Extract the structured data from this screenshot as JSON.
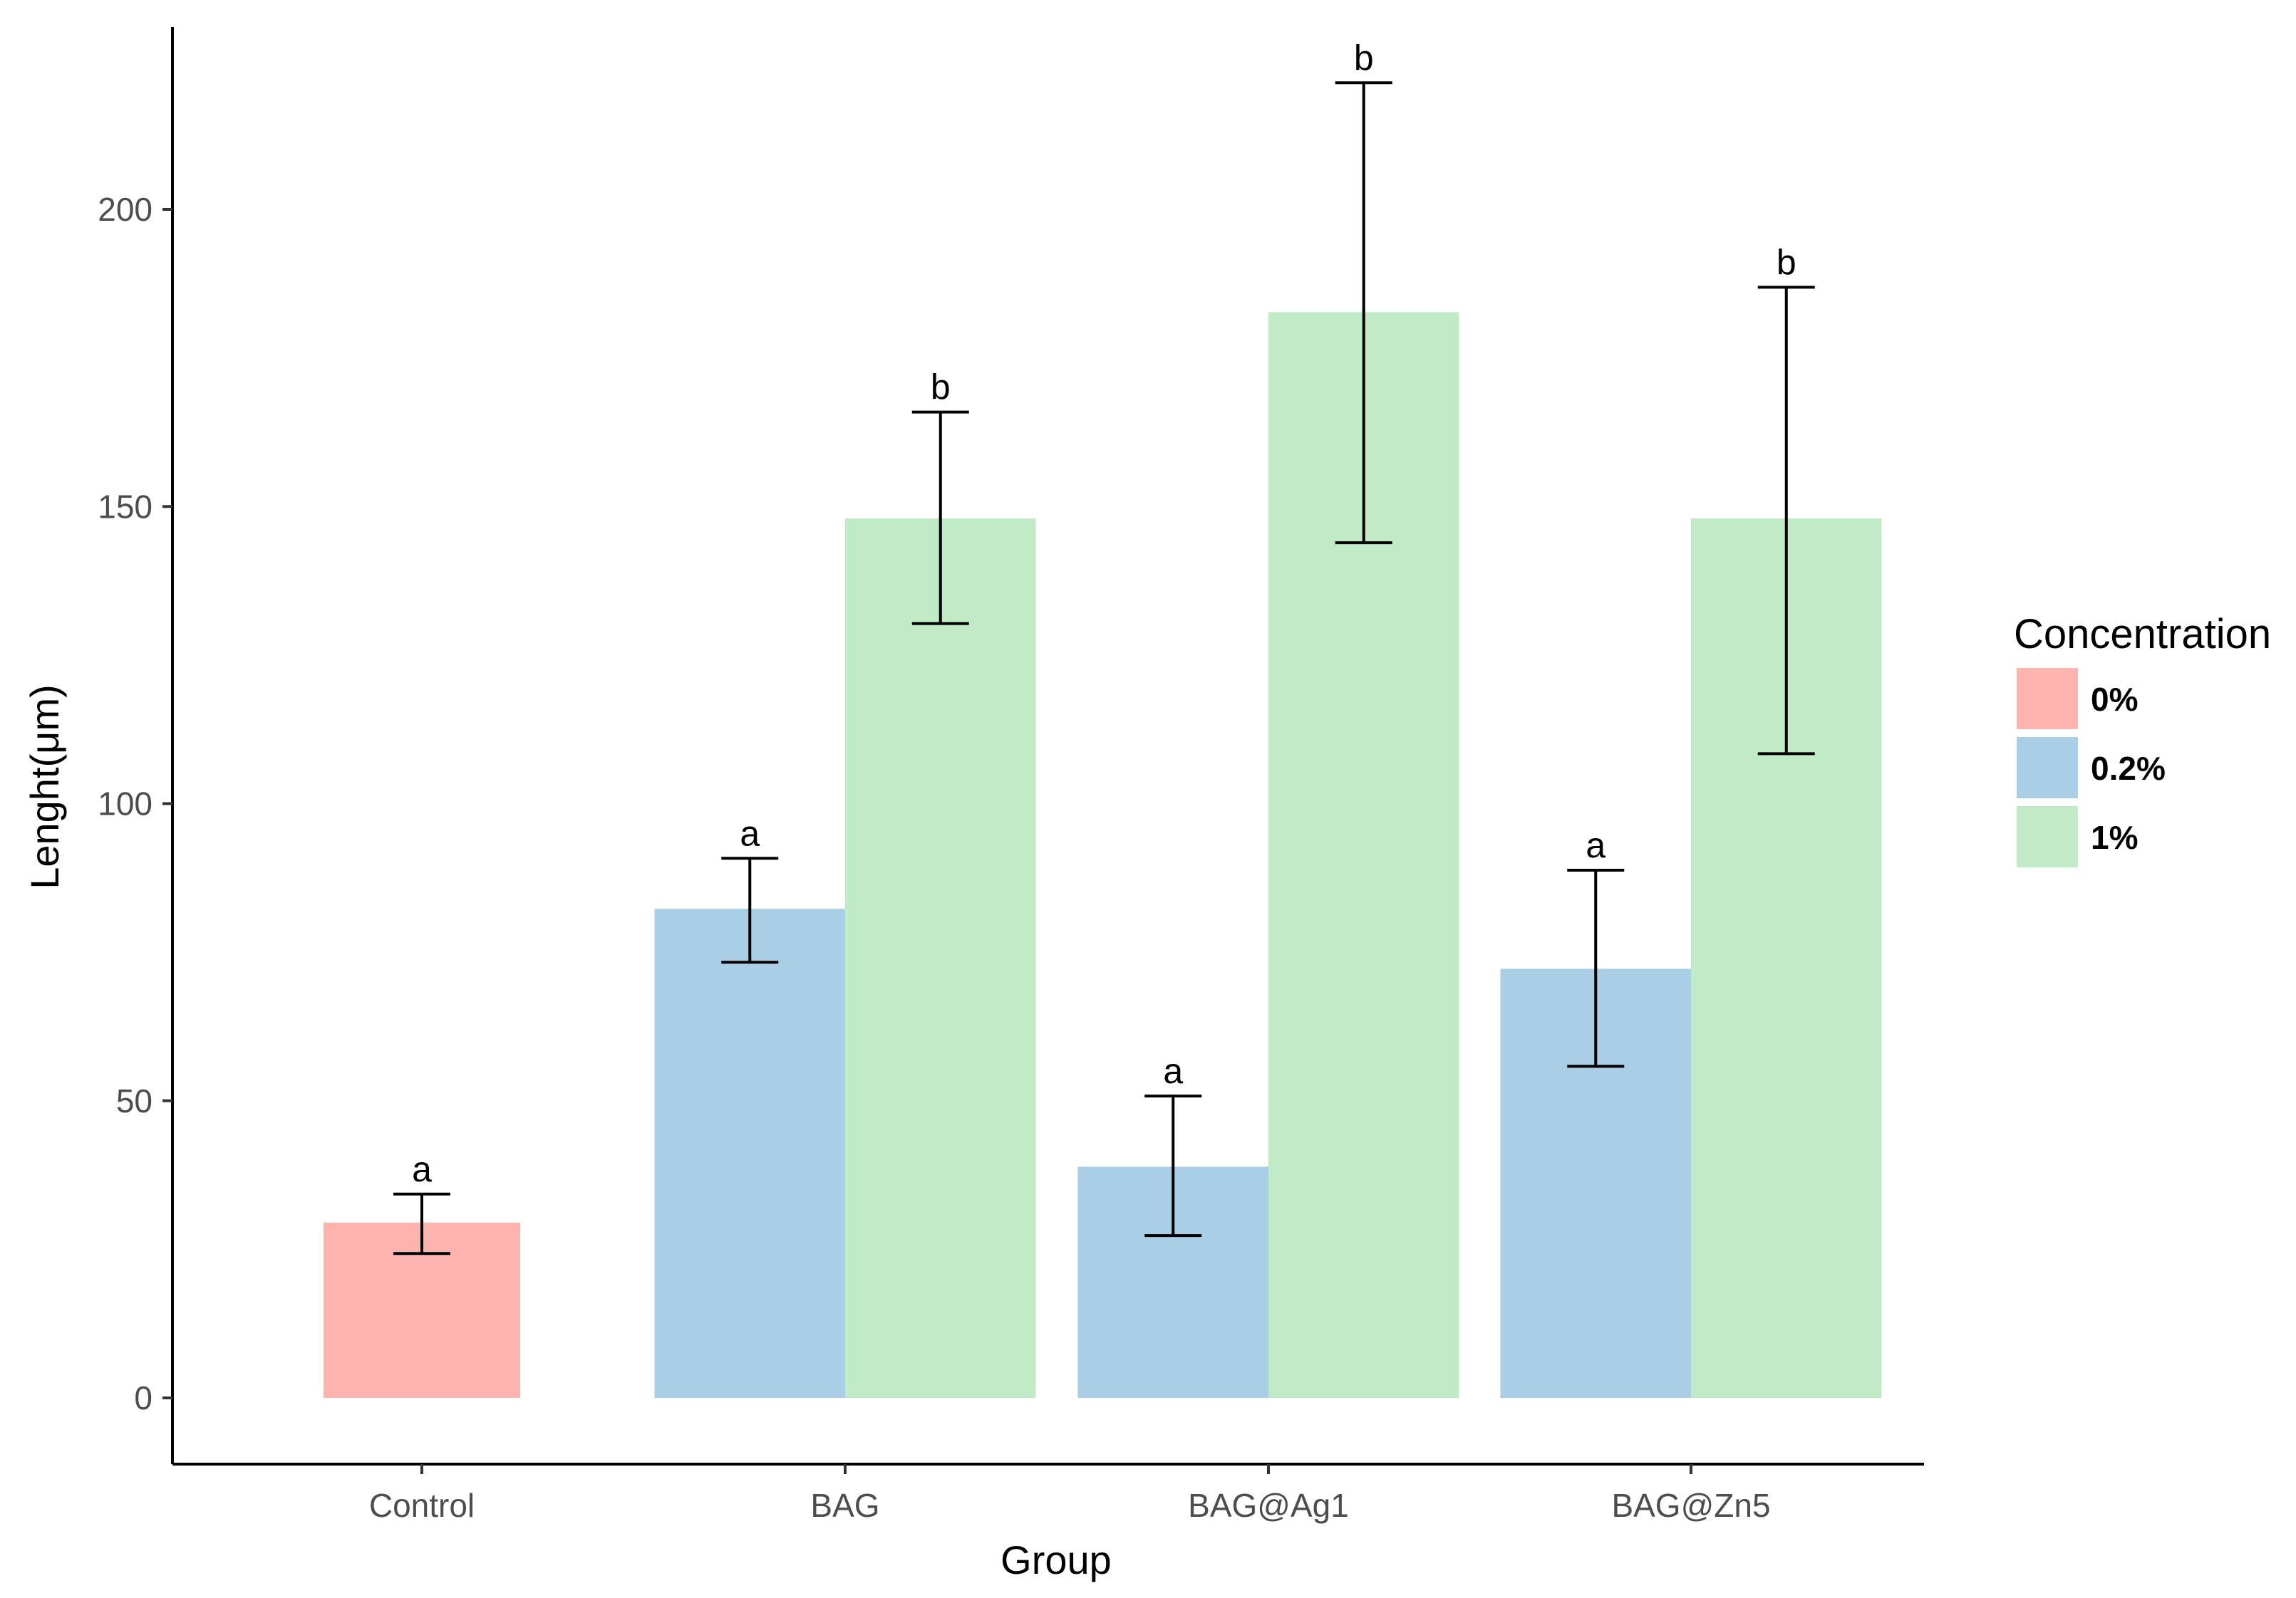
{
  "chart_data": {
    "type": "bar",
    "title": "",
    "xlabel": "Group",
    "ylabel": "Lenght(μm)",
    "ylim": [
      -11,
      230
    ],
    "yticks": [
      0,
      50,
      100,
      150,
      200
    ],
    "categories": [
      "Control",
      "BAG",
      "BAG@Ag1",
      "BAG@Zn5"
    ],
    "legend": {
      "title": "Concentration",
      "position": "right",
      "entries": [
        {
          "name": "0%",
          "color": "#F8766D"
        },
        {
          "name": "0.2%",
          "color": "#619CFF"
        },
        {
          "name": "1%",
          "color": "#00BA38"
        }
      ]
    },
    "colors": {
      "0%": "#fdb3ae",
      "0.2%": "#a9cee6",
      "1%": "#c1ebc6"
    },
    "bars": [
      {
        "category": "Control",
        "series": "0%",
        "value": 29.5,
        "error_low": 24.3,
        "error_high": 34.3,
        "label": "a"
      },
      {
        "category": "BAG",
        "series": "0.2%",
        "value": 82.3,
        "error_low": 73.3,
        "error_high": 90.8,
        "label": "a"
      },
      {
        "category": "BAG",
        "series": "1%",
        "value": 148.0,
        "error_low": 130.3,
        "error_high": 165.9,
        "label": "b"
      },
      {
        "category": "BAG@Ag1",
        "series": "0.2%",
        "value": 38.9,
        "error_low": 27.3,
        "error_high": 50.8,
        "label": "a"
      },
      {
        "category": "BAG@Ag1",
        "series": "1%",
        "value": 182.7,
        "error_low": 143.9,
        "error_high": 221.3,
        "label": "b"
      },
      {
        "category": "BAG@Zn5",
        "series": "0.2%",
        "value": 72.2,
        "error_low": 55.8,
        "error_high": 88.8,
        "label": "a"
      },
      {
        "category": "BAG@Zn5",
        "series": "1%",
        "value": 148.0,
        "error_low": 108.4,
        "error_high": 186.9,
        "label": "b"
      }
    ]
  }
}
